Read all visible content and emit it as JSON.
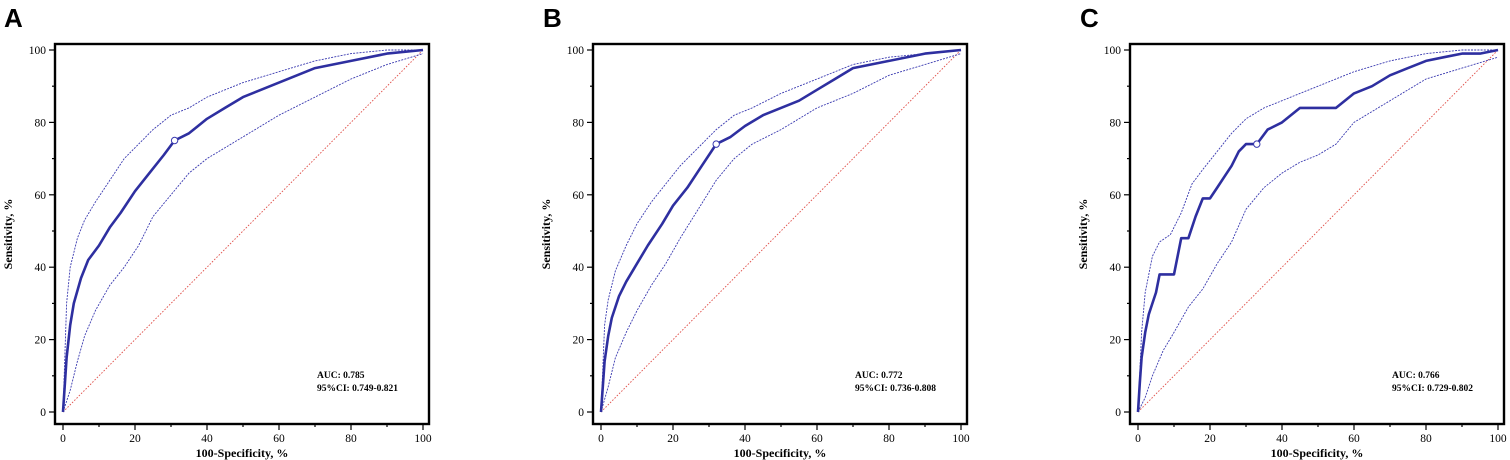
{
  "chart_data": [
    {
      "type": "line",
      "panel_label": "A",
      "xlabel": "100-Specificity, %",
      "ylabel": "Sensitivity, %",
      "xlim": [
        0,
        100
      ],
      "ylim": [
        0,
        100
      ],
      "xticks": [
        0,
        20,
        40,
        60,
        80,
        100
      ],
      "yticks": [
        0,
        20,
        40,
        60,
        80,
        100
      ],
      "annotation": {
        "auc": "AUC: 0.785",
        "ci": "95%CI: 0.749-0.821"
      },
      "cutoff_point": {
        "x": 31,
        "y": 75
      },
      "series": [
        {
          "name": "ROC",
          "x": [
            0,
            1,
            2,
            3,
            5,
            7,
            10,
            13,
            16,
            20,
            24,
            28,
            31,
            35,
            40,
            45,
            50,
            55,
            60,
            65,
            70,
            80,
            90,
            100
          ],
          "y": [
            0,
            15,
            24,
            30,
            37,
            42,
            46,
            51,
            55,
            61,
            66,
            71,
            75,
            77,
            81,
            84,
            87,
            89,
            91,
            93,
            95,
            97,
            99,
            100
          ]
        },
        {
          "name": "95% CI upper",
          "x": [
            0,
            1,
            2,
            4,
            6,
            9,
            13,
            17,
            21,
            25,
            30,
            35,
            40,
            50,
            60,
            70,
            80,
            90,
            100
          ],
          "y": [
            0,
            30,
            40,
            48,
            53,
            58,
            64,
            70,
            74,
            78,
            82,
            84,
            87,
            91,
            94,
            97,
            99,
            100,
            100
          ]
        },
        {
          "name": "95% CI lower",
          "x": [
            0,
            2,
            4,
            6,
            9,
            13,
            17,
            21,
            25,
            30,
            35,
            40,
            50,
            60,
            70,
            80,
            90,
            100
          ],
          "y": [
            0,
            6,
            14,
            21,
            28,
            35,
            40,
            46,
            54,
            60,
            66,
            70,
            76,
            82,
            87,
            92,
            96,
            99
          ]
        },
        {
          "name": "Reference",
          "x": [
            0,
            100
          ],
          "y": [
            0,
            100
          ]
        }
      ]
    },
    {
      "type": "line",
      "panel_label": "B",
      "xlabel": "100-Specificity, %",
      "ylabel": "Sensitivity, %",
      "xlim": [
        0,
        100
      ],
      "ylim": [
        0,
        100
      ],
      "xticks": [
        0,
        20,
        40,
        60,
        80,
        100
      ],
      "yticks": [
        0,
        20,
        40,
        60,
        80,
        100
      ],
      "annotation": {
        "auc": "AUC: 0.772",
        "ci": "95%CI: 0.736-0.808"
      },
      "cutoff_point": {
        "x": 32,
        "y": 74
      },
      "series": [
        {
          "name": "ROC",
          "x": [
            0,
            1,
            2,
            3,
            5,
            7,
            10,
            13,
            17,
            20,
            24,
            28,
            32,
            36,
            40,
            45,
            50,
            55,
            60,
            65,
            70,
            80,
            90,
            100
          ],
          "y": [
            0,
            14,
            21,
            26,
            32,
            36,
            41,
            46,
            52,
            57,
            62,
            68,
            74,
            76,
            79,
            82,
            84,
            86,
            89,
            92,
            95,
            97,
            99,
            100
          ]
        },
        {
          "name": "95% CI upper",
          "x": [
            0,
            1,
            2,
            4,
            7,
            10,
            14,
            18,
            22,
            27,
            32,
            37,
            42,
            50,
            60,
            70,
            80,
            90,
            100
          ],
          "y": [
            0,
            24,
            31,
            39,
            46,
            52,
            58,
            63,
            68,
            73,
            78,
            82,
            84,
            88,
            92,
            96,
            98,
            99,
            100
          ]
        },
        {
          "name": "95% CI lower",
          "x": [
            0,
            2,
            4,
            7,
            10,
            14,
            18,
            22,
            27,
            32,
            37,
            42,
            50,
            60,
            70,
            80,
            90,
            100
          ],
          "y": [
            0,
            7,
            15,
            22,
            28,
            35,
            41,
            48,
            56,
            64,
            70,
            74,
            78,
            84,
            88,
            93,
            96,
            99
          ]
        },
        {
          "name": "Reference",
          "x": [
            0,
            100
          ],
          "y": [
            0,
            100
          ]
        }
      ]
    },
    {
      "type": "line",
      "panel_label": "C",
      "xlabel": "100-Specificity, %",
      "ylabel": "Sensitivity, %",
      "xlim": [
        0,
        100
      ],
      "ylim": [
        0,
        100
      ],
      "xticks": [
        0,
        20,
        40,
        60,
        80,
        100
      ],
      "yticks": [
        0,
        20,
        40,
        60,
        80,
        100
      ],
      "annotation": {
        "auc": "AUC: 0.766",
        "ci": "95%CI: 0.729-0.802"
      },
      "cutoff_point": {
        "x": 33,
        "y": 74
      },
      "series": [
        {
          "name": "ROC",
          "x": [
            0,
            0.5,
            1,
            2,
            3,
            4,
            5,
            6,
            8,
            10,
            12,
            14,
            16,
            18,
            20,
            22,
            24,
            26,
            28,
            30,
            33,
            36,
            40,
            45,
            50,
            55,
            60,
            65,
            70,
            75,
            80,
            85,
            90,
            95,
            100
          ],
          "y": [
            0,
            8,
            15,
            22,
            27,
            30,
            33,
            38,
            38,
            38,
            48,
            48,
            54,
            59,
            59,
            62,
            65,
            68,
            72,
            74,
            74,
            78,
            80,
            84,
            84,
            84,
            88,
            90,
            93,
            95,
            97,
            98,
            99,
            99,
            100
          ]
        },
        {
          "name": "95% CI upper",
          "x": [
            0,
            1,
            2,
            4,
            6,
            9,
            12,
            15,
            18,
            22,
            26,
            30,
            35,
            40,
            45,
            50,
            60,
            70,
            80,
            90,
            100
          ],
          "y": [
            0,
            22,
            33,
            43,
            47,
            49,
            55,
            63,
            67,
            72,
            77,
            81,
            84,
            86,
            88,
            90,
            94,
            97,
            99,
            100,
            100
          ]
        },
        {
          "name": "95% CI lower",
          "x": [
            0,
            2,
            4,
            7,
            10,
            14,
            18,
            22,
            26,
            30,
            35,
            40,
            45,
            50,
            55,
            60,
            70,
            80,
            90,
            100
          ],
          "y": [
            0,
            4,
            10,
            17,
            22,
            29,
            34,
            41,
            47,
            56,
            62,
            66,
            69,
            71,
            74,
            80,
            86,
            92,
            95,
            98
          ]
        },
        {
          "name": "Reference",
          "x": [
            0,
            100
          ],
          "y": [
            0,
            100
          ]
        }
      ]
    }
  ]
}
